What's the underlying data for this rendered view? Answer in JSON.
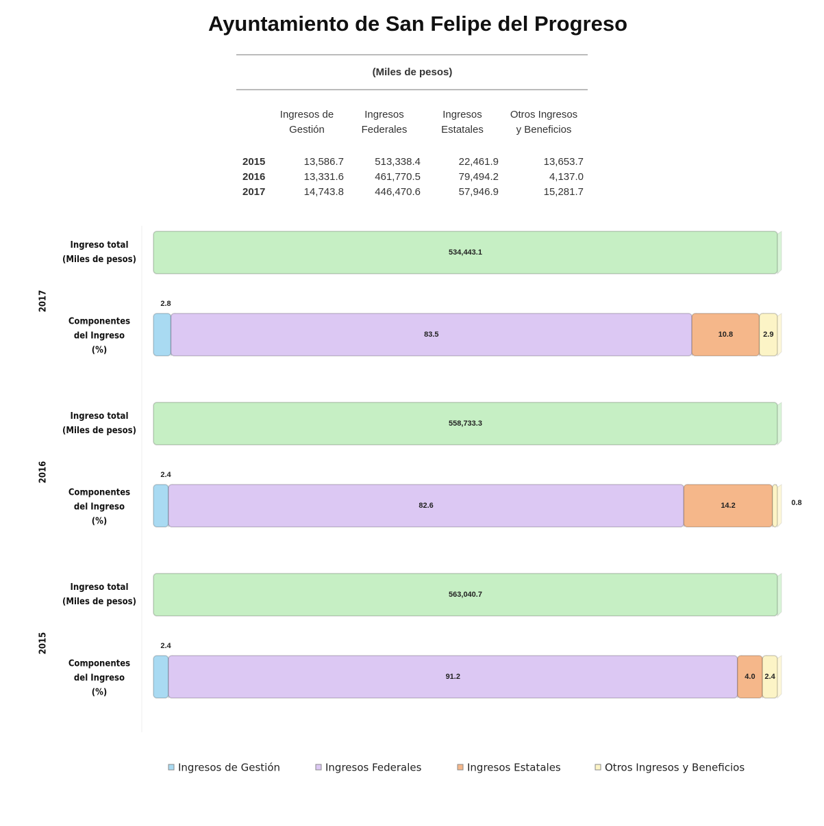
{
  "title": "Ayuntamiento de San Felipe del Progreso",
  "table": {
    "subtitle": "(Miles de pesos)",
    "columns": [
      [
        "Ingresos de",
        "Gestión"
      ],
      [
        "Ingresos",
        "Federales"
      ],
      [
        "Ingresos",
        "Estatales"
      ],
      [
        "Otros Ingresos",
        "y Beneficios"
      ]
    ],
    "rows": [
      {
        "year": "2015",
        "values": [
          "13,586.7",
          "513,338.4",
          "22,461.9",
          "13,653.7"
        ]
      },
      {
        "year": "2016",
        "values": [
          "13,331.6",
          "461,770.5",
          "79,494.2",
          "4,137.0"
        ]
      },
      {
        "year": "2017",
        "values": [
          "14,743.8",
          "446,470.6",
          "57,946.9",
          "15,281.7"
        ]
      }
    ]
  },
  "chart_data": {
    "type": "bar",
    "row_labels": [
      [
        "Ingreso total",
        "(Miles de pesos)"
      ],
      [
        "Componentes",
        "del Ingreso",
        "(%)"
      ]
    ],
    "years": [
      "2017",
      "2016",
      "2015"
    ],
    "totals": {
      "color": "#c6efc4",
      "values": [
        534443.1,
        558733.3,
        563040.7
      ],
      "value_labels": [
        "534,443.1",
        "558,733.3",
        "563,040.7"
      ]
    },
    "xlim": [
      0,
      100
    ],
    "series": [
      {
        "name": "Ingresos de Gestión",
        "color": "#a9daf2",
        "values": [
          2.8,
          2.4,
          2.4
        ]
      },
      {
        "name": "Ingresos Federales",
        "color": "#dcc8f3",
        "values": [
          83.5,
          82.6,
          91.2
        ]
      },
      {
        "name": "Ingresos Estatales",
        "color": "#f5b78a",
        "values": [
          10.8,
          14.2,
          4.0
        ],
        "value_labels": [
          "10.8",
          "14.2",
          "4.0"
        ]
      },
      {
        "name": "Otros Ingresos y Beneficios",
        "color": "#fcf4c6",
        "values": [
          2.9,
          0.8,
          2.4
        ]
      }
    ]
  }
}
